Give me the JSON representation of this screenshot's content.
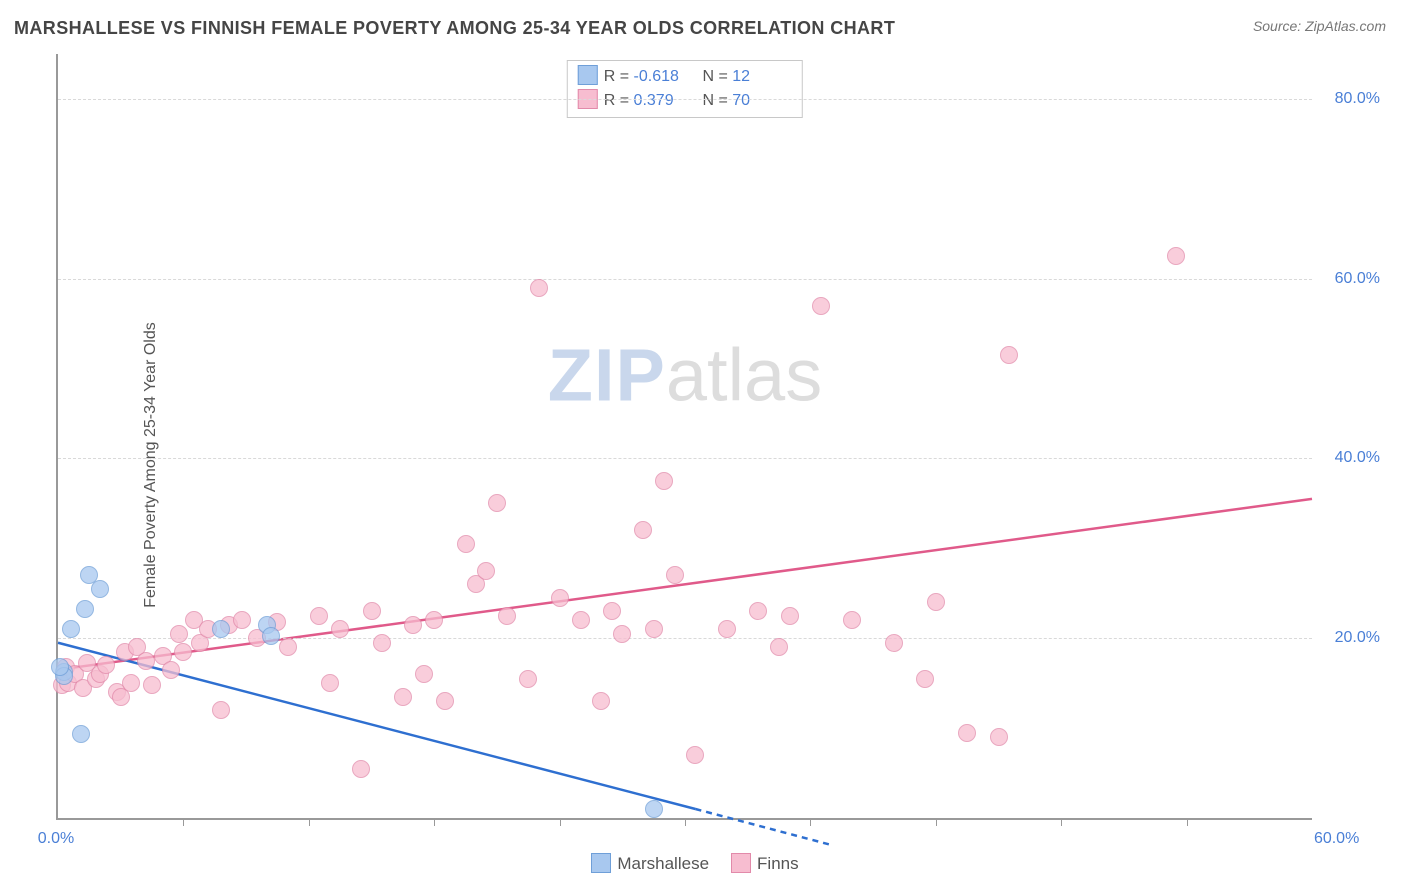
{
  "header": {
    "title": "MARSHALLESE VS FINNISH FEMALE POVERTY AMONG 25-34 YEAR OLDS CORRELATION CHART",
    "source_prefix": "Source: ",
    "source": "ZipAtlas.com"
  },
  "ylabel": "Female Poverty Among 25-34 Year Olds",
  "watermark": {
    "part1": "ZIP",
    "part2": "atlas"
  },
  "axes": {
    "xlim": [
      0,
      60
    ],
    "ylim": [
      0,
      85
    ],
    "x_ticks_major": [
      0,
      60
    ],
    "x_ticks_minor": [
      6,
      12,
      18,
      24,
      30,
      36,
      42,
      48,
      54
    ],
    "y_gridlines": [
      20,
      40,
      60,
      80
    ],
    "x_label_fmt": "pct1",
    "y_label_fmt": "pct1",
    "axis_color": "#999999",
    "grid_color": "#d9d9d9",
    "tick_label_color": "#4a7fd6",
    "label_fontsize": 16
  },
  "series": {
    "marshallese": {
      "label": "Marshallese",
      "R": "-0.618",
      "N": "12",
      "color_fill": "#a8c8ef",
      "color_stroke": "#6f9fd8",
      "line_color": "#2e6fd0",
      "marker_radius": 9,
      "trend": {
        "x1": 0,
        "y1": 19.5,
        "x2": 30.5,
        "y2": 1.0,
        "dash_from_x": 30.5,
        "dash_to_x": 37,
        "dash_to_y": -3
      },
      "points": [
        {
          "x": 0.3,
          "y": 16.2
        },
        {
          "x": 0.3,
          "y": 15.8
        },
        {
          "x": 0.1,
          "y": 16.8
        },
        {
          "x": 0.6,
          "y": 21.0
        },
        {
          "x": 1.1,
          "y": 9.3
        },
        {
          "x": 1.3,
          "y": 23.2
        },
        {
          "x": 1.5,
          "y": 27.0
        },
        {
          "x": 2.0,
          "y": 25.5
        },
        {
          "x": 7.8,
          "y": 21.0
        },
        {
          "x": 10.0,
          "y": 21.5
        },
        {
          "x": 10.2,
          "y": 20.2
        },
        {
          "x": 28.5,
          "y": 1.0
        }
      ]
    },
    "finns": {
      "label": "Finns",
      "R": "0.379",
      "N": "70",
      "color_fill": "#f7bdd0",
      "color_stroke": "#e28aaa",
      "line_color": "#e05a8a",
      "marker_radius": 9,
      "trend": {
        "x1": 0,
        "y1": 16.5,
        "x2": 60,
        "y2": 35.5
      },
      "points": [
        {
          "x": 0.2,
          "y": 14.8
        },
        {
          "x": 0.5,
          "y": 15.0
        },
        {
          "x": 0.4,
          "y": 16.8
        },
        {
          "x": 0.8,
          "y": 16.0
        },
        {
          "x": 1.2,
          "y": 14.5
        },
        {
          "x": 1.4,
          "y": 17.2
        },
        {
          "x": 1.8,
          "y": 15.5
        },
        {
          "x": 2.0,
          "y": 16.0
        },
        {
          "x": 2.3,
          "y": 17.0
        },
        {
          "x": 2.8,
          "y": 14.0
        },
        {
          "x": 3.0,
          "y": 13.5
        },
        {
          "x": 3.2,
          "y": 18.5
        },
        {
          "x": 3.5,
          "y": 15.0
        },
        {
          "x": 3.8,
          "y": 19.0
        },
        {
          "x": 4.2,
          "y": 17.5
        },
        {
          "x": 4.5,
          "y": 14.8
        },
        {
          "x": 5.0,
          "y": 18.0
        },
        {
          "x": 5.4,
          "y": 16.5
        },
        {
          "x": 5.8,
          "y": 20.5
        },
        {
          "x": 6.0,
          "y": 18.5
        },
        {
          "x": 6.5,
          "y": 22.0
        },
        {
          "x": 6.8,
          "y": 19.5
        },
        {
          "x": 7.2,
          "y": 21.0
        },
        {
          "x": 7.8,
          "y": 12.0
        },
        {
          "x": 8.2,
          "y": 21.5
        },
        {
          "x": 8.8,
          "y": 22.0
        },
        {
          "x": 9.5,
          "y": 20.0
        },
        {
          "x": 10.5,
          "y": 21.8
        },
        {
          "x": 11.0,
          "y": 19.0
        },
        {
          "x": 12.5,
          "y": 22.5
        },
        {
          "x": 13.0,
          "y": 15.0
        },
        {
          "x": 13.5,
          "y": 21.0
        },
        {
          "x": 14.5,
          "y": 5.5
        },
        {
          "x": 15.0,
          "y": 23.0
        },
        {
          "x": 15.5,
          "y": 19.5
        },
        {
          "x": 16.5,
          "y": 13.5
        },
        {
          "x": 17.0,
          "y": 21.5
        },
        {
          "x": 17.5,
          "y": 16.0
        },
        {
          "x": 18.0,
          "y": 22.0
        },
        {
          "x": 18.5,
          "y": 13.0
        },
        {
          "x": 19.5,
          "y": 30.5
        },
        {
          "x": 20.0,
          "y": 26.0
        },
        {
          "x": 20.5,
          "y": 27.5
        },
        {
          "x": 21.0,
          "y": 35.0
        },
        {
          "x": 21.5,
          "y": 22.5
        },
        {
          "x": 22.5,
          "y": 15.5
        },
        {
          "x": 23.0,
          "y": 59.0
        },
        {
          "x": 24.0,
          "y": 24.5
        },
        {
          "x": 25.0,
          "y": 22.0
        },
        {
          "x": 26.0,
          "y": 13.0
        },
        {
          "x": 26.5,
          "y": 23.0
        },
        {
          "x": 27.0,
          "y": 20.5
        },
        {
          "x": 28.0,
          "y": 32.0
        },
        {
          "x": 28.5,
          "y": 21.0
        },
        {
          "x": 29.0,
          "y": 37.5
        },
        {
          "x": 29.5,
          "y": 27.0
        },
        {
          "x": 30.5,
          "y": 7.0
        },
        {
          "x": 32.0,
          "y": 21.0
        },
        {
          "x": 33.5,
          "y": 23.0
        },
        {
          "x": 34.5,
          "y": 19.0
        },
        {
          "x": 35.0,
          "y": 22.5
        },
        {
          "x": 36.5,
          "y": 57.0
        },
        {
          "x": 38.0,
          "y": 22.0
        },
        {
          "x": 40.0,
          "y": 19.5
        },
        {
          "x": 41.5,
          "y": 15.5
        },
        {
          "x": 42.0,
          "y": 24.0
        },
        {
          "x": 43.5,
          "y": 9.5
        },
        {
          "x": 45.0,
          "y": 9.0
        },
        {
          "x": 45.5,
          "y": 51.5
        },
        {
          "x": 53.5,
          "y": 62.5
        }
      ]
    }
  },
  "topbox": {
    "rows": [
      {
        "swatch": "marshallese",
        "R_label": "R =",
        "R": "-0.618",
        "N_label": "N =",
        "N": "12"
      },
      {
        "swatch": "finns",
        "R_label": "R =",
        "R": "0.379",
        "N_label": "N =",
        "N": "70"
      }
    ]
  },
  "bottom_legend": [
    {
      "swatch": "marshallese",
      "label": "Marshallese"
    },
    {
      "swatch": "finns",
      "label": "Finns"
    }
  ]
}
